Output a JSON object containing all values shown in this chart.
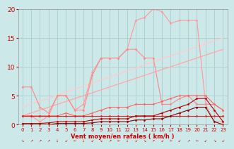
{
  "bg_color": "#cce8e8",
  "grid_color": "#aacccc",
  "text_color": "#cc0000",
  "xlabel": "Vent moyen/en rafales ( km/h )",
  "xlim": [
    -0.5,
    23.5
  ],
  "ylim": [
    0,
    20
  ],
  "yticks": [
    0,
    5,
    10,
    15,
    20
  ],
  "xticks": [
    0,
    1,
    2,
    3,
    4,
    5,
    6,
    7,
    8,
    9,
    10,
    11,
    12,
    13,
    14,
    15,
    16,
    17,
    18,
    19,
    20,
    21,
    22,
    23
  ],
  "lines": [
    {
      "comment": "straight diagonal line 1 - light pink, from ~1.5 to ~13",
      "x": [
        0,
        23
      ],
      "y": [
        1.5,
        13.0
      ],
      "color": "#ffaaaa",
      "lw": 1.0,
      "marker": null
    },
    {
      "comment": "straight diagonal line 2 - lighter pink, from ~3 to ~15",
      "x": [
        0,
        23
      ],
      "y": [
        3.0,
        15.0
      ],
      "color": "#ffcccc",
      "lw": 1.0,
      "marker": null
    },
    {
      "comment": "peaked line top - reaches ~20, light salmon, with dot markers",
      "x": [
        0,
        1,
        2,
        3,
        4,
        5,
        6,
        7,
        8,
        9,
        10,
        11,
        12,
        13,
        14,
        15,
        16,
        17,
        18,
        19,
        20,
        21,
        22,
        23
      ],
      "y": [
        1.5,
        1.5,
        0.5,
        1.5,
        5.0,
        5.0,
        2.5,
        3.5,
        9.0,
        11.5,
        11.5,
        11.5,
        13.0,
        18.0,
        18.5,
        20.0,
        19.5,
        17.5,
        18.0,
        18.0,
        18.0,
        3.5,
        0.5,
        0.5
      ],
      "color": "#ff9999",
      "lw": 0.8,
      "marker": "D",
      "ms": 1.5
    },
    {
      "comment": "peaked line mid - reaches ~13, medium pink, with dot markers",
      "x": [
        0,
        1,
        2,
        3,
        4,
        5,
        6,
        7,
        8,
        9,
        10,
        11,
        12,
        13,
        14,
        15,
        16,
        17,
        18,
        19,
        20,
        21,
        22,
        23
      ],
      "y": [
        6.5,
        6.5,
        3.0,
        2.0,
        5.0,
        5.0,
        2.5,
        2.5,
        8.5,
        11.5,
        11.5,
        11.5,
        13.0,
        13.0,
        11.5,
        11.5,
        3.5,
        3.5,
        4.5,
        5.0,
        3.5,
        3.5,
        3.5,
        2.5
      ],
      "color": "#ff8888",
      "lw": 0.8,
      "marker": "D",
      "ms": 1.5
    },
    {
      "comment": "mid line - reaches ~5, medium red with dots",
      "x": [
        0,
        1,
        2,
        3,
        4,
        5,
        6,
        7,
        8,
        9,
        10,
        11,
        12,
        13,
        14,
        15,
        16,
        17,
        18,
        19,
        20,
        21,
        22,
        23
      ],
      "y": [
        1.5,
        1.5,
        1.5,
        1.5,
        1.5,
        2.0,
        1.5,
        1.5,
        2.0,
        2.5,
        3.0,
        3.0,
        3.0,
        3.5,
        3.5,
        3.5,
        4.0,
        4.5,
        5.0,
        5.0,
        5.0,
        5.0,
        3.5,
        2.5
      ],
      "color": "#ff6666",
      "lw": 0.8,
      "marker": "D",
      "ms": 1.5
    },
    {
      "comment": "flat line ~1.5 - dark red with small markers",
      "x": [
        0,
        1,
        2,
        3,
        4,
        5,
        6,
        7,
        8,
        9,
        10,
        11,
        12,
        13,
        14,
        15,
        16,
        17,
        18,
        19,
        20,
        21,
        22,
        23
      ],
      "y": [
        1.5,
        1.5,
        1.5,
        1.5,
        1.5,
        1.5,
        1.5,
        1.5,
        1.5,
        1.5,
        1.5,
        1.5,
        1.5,
        1.5,
        1.5,
        1.5,
        1.5,
        1.5,
        1.5,
        1.5,
        1.5,
        1.5,
        1.5,
        1.5
      ],
      "color": "#dd2222",
      "lw": 0.8,
      "marker": "D",
      "ms": 1.5
    },
    {
      "comment": "low line slowly rising - dark red",
      "x": [
        0,
        1,
        2,
        3,
        4,
        5,
        6,
        7,
        8,
        9,
        10,
        11,
        12,
        13,
        14,
        15,
        16,
        17,
        18,
        19,
        20,
        21,
        22,
        23
      ],
      "y": [
        0.2,
        0.2,
        0.2,
        0.3,
        0.5,
        0.5,
        0.5,
        0.5,
        0.8,
        1.0,
        1.0,
        1.0,
        1.0,
        1.5,
        1.5,
        1.5,
        2.0,
        2.5,
        3.0,
        3.5,
        4.5,
        4.5,
        2.5,
        0.5
      ],
      "color": "#bb0000",
      "lw": 0.8,
      "marker": "D",
      "ms": 1.5
    },
    {
      "comment": "lowest line near 0 - darkest red",
      "x": [
        0,
        1,
        2,
        3,
        4,
        5,
        6,
        7,
        8,
        9,
        10,
        11,
        12,
        13,
        14,
        15,
        16,
        17,
        18,
        19,
        20,
        21,
        22,
        23
      ],
      "y": [
        0.0,
        0.0,
        0.0,
        0.0,
        0.2,
        0.2,
        0.2,
        0.2,
        0.3,
        0.5,
        0.5,
        0.5,
        0.5,
        0.8,
        0.8,
        1.0,
        1.0,
        1.5,
        2.0,
        2.5,
        3.0,
        3.0,
        0.5,
        0.0
      ],
      "color": "#880000",
      "lw": 0.8,
      "marker": "D",
      "ms": 1.5
    }
  ]
}
